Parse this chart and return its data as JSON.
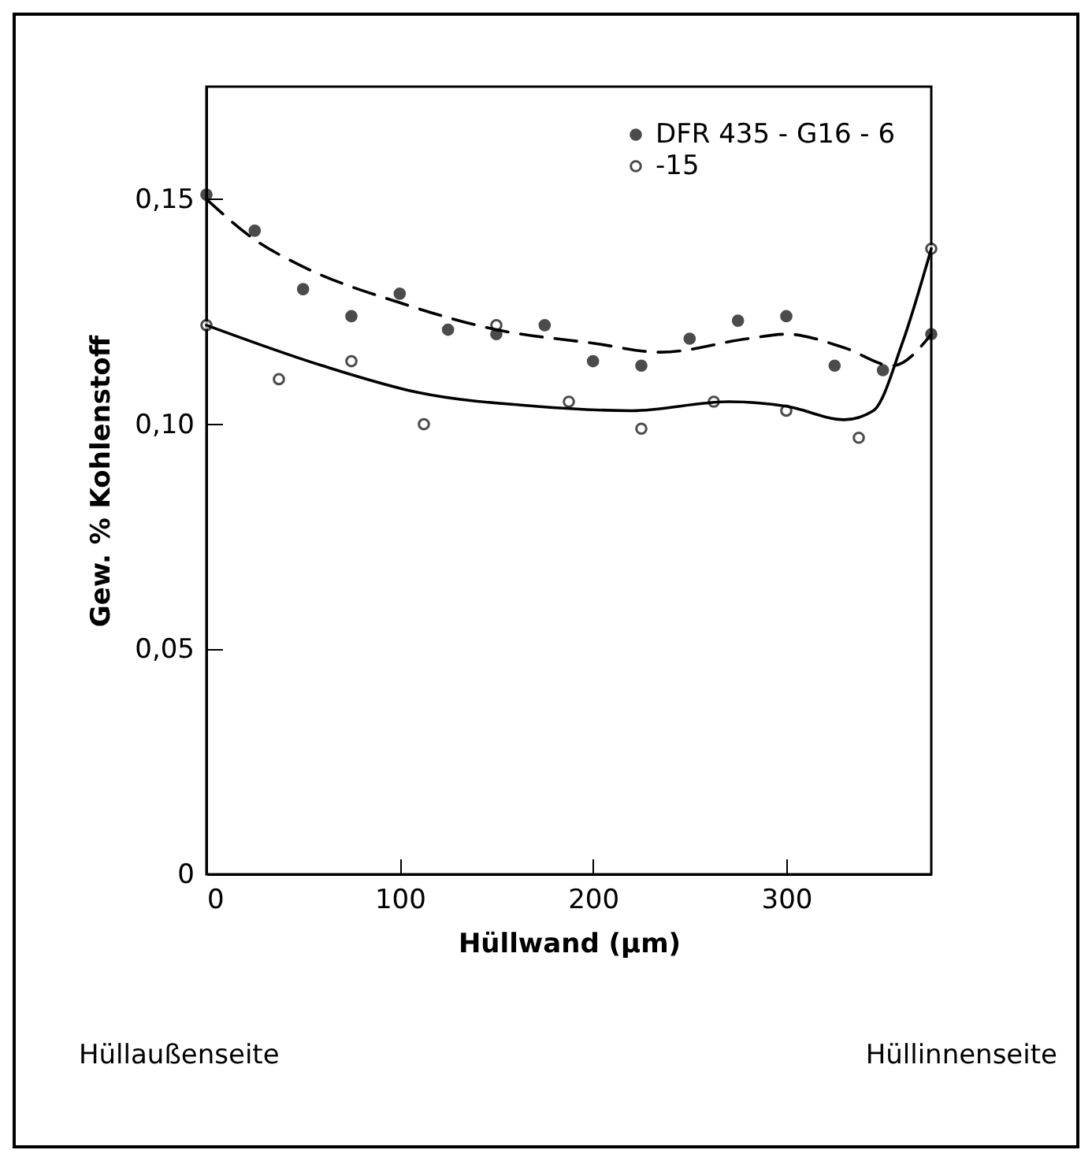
{
  "chart_data": {
    "type": "scatter",
    "xlabel": "Hüllwand (µm)",
    "ylabel": "Gew. % Kohlenstoff",
    "xlim": [
      0,
      375
    ],
    "ylim": [
      0,
      0.175
    ],
    "xticks": [
      0,
      100,
      200,
      300
    ],
    "yticks": [
      0,
      {
        "value": 0.05,
        "label": "0,05"
      },
      {
        "value": 0.1,
        "label": "0,10"
      },
      {
        "value": 0.15,
        "label": "0,15"
      }
    ],
    "grid": false,
    "legend": "top right",
    "marker": "circle",
    "annotations": [
      "Hüllaußenseite",
      "Hüllinnenseite"
    ],
    "series": [
      {
        "name": "DFR 435 - G16 - 6",
        "color": "#000000",
        "x": [
          0,
          25,
          50,
          75,
          100,
          125,
          150,
          175,
          200,
          225,
          250,
          275,
          300,
          325,
          350,
          375
        ],
        "values": [
          0.151,
          0.143,
          0.13,
          0.124,
          0.129,
          0.121,
          0.12,
          0.122,
          0.114,
          0.113,
          0.119,
          0.123,
          0.124,
          0.113,
          0.112,
          0.12
        ]
      },
      {
        "name": "-15",
        "color": "#000000",
        "x": [
          0,
          37.5,
          75,
          112.5,
          150,
          187.5,
          225,
          262.5,
          300,
          337.5,
          375
        ],
        "values": [
          0.122,
          0.11,
          0.114,
          0.1,
          0.122,
          0.105,
          0.099,
          0.105,
          0.103,
          0.097,
          0.139
        ]
      },
      {
        "type": "line",
        "color": "#000000",
        "line_style": "dashed",
        "marker": "none",
        "x": [
          0,
          25,
          50,
          100,
          150,
          200,
          235,
          280,
          300,
          330,
          355,
          375
        ],
        "values": [
          0.15,
          0.141,
          0.135,
          0.127,
          0.121,
          0.118,
          0.116,
          0.119,
          0.12,
          0.117,
          0.113,
          0.12
        ]
      },
      {
        "type": "line",
        "color": "#000000",
        "line_style": "solid",
        "marker": "none",
        "x": [
          0,
          60,
          110,
          170,
          220,
          270,
          300,
          330,
          345,
          360,
          375
        ],
        "values": [
          0.122,
          0.113,
          0.107,
          0.104,
          0.103,
          0.105,
          0.104,
          0.101,
          0.103,
          0.118,
          0.139
        ]
      }
    ]
  }
}
